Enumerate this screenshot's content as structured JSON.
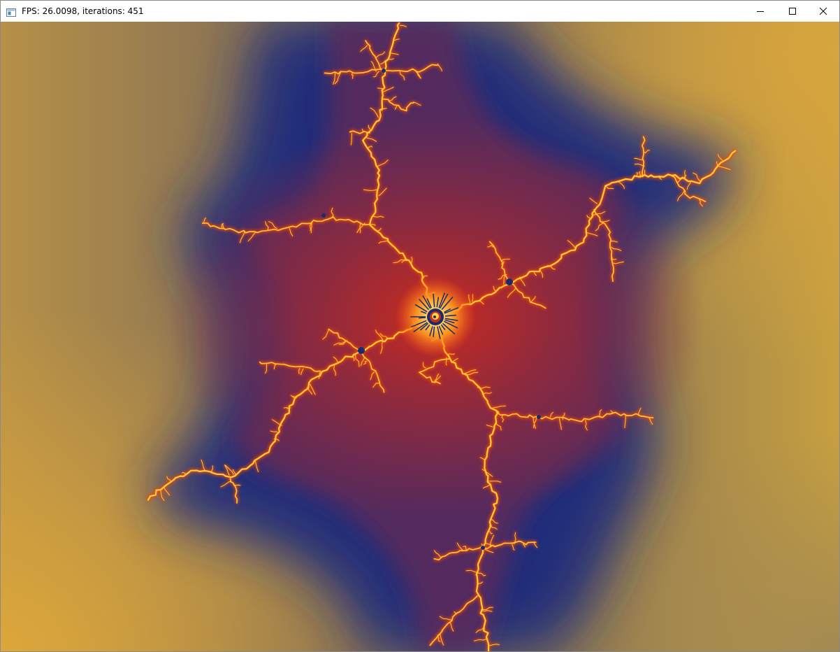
{
  "window": {
    "title": "FPS: 26.0098, iterations: 451",
    "app_icon": "application-window-icon",
    "controls": {
      "minimize_icon": "minimize-icon",
      "maximize_icon": "maximize-icon",
      "close_icon": "close-icon"
    }
  },
  "render": {
    "subject": "julia-set-fractal",
    "palette": {
      "outer": "#d6a63a",
      "mid": "#1c2a7c",
      "inner": "#a82a2c",
      "branch_glow": "#f04a10",
      "branch_core": "#ffcc33",
      "interior": "#1a2a6a"
    }
  }
}
